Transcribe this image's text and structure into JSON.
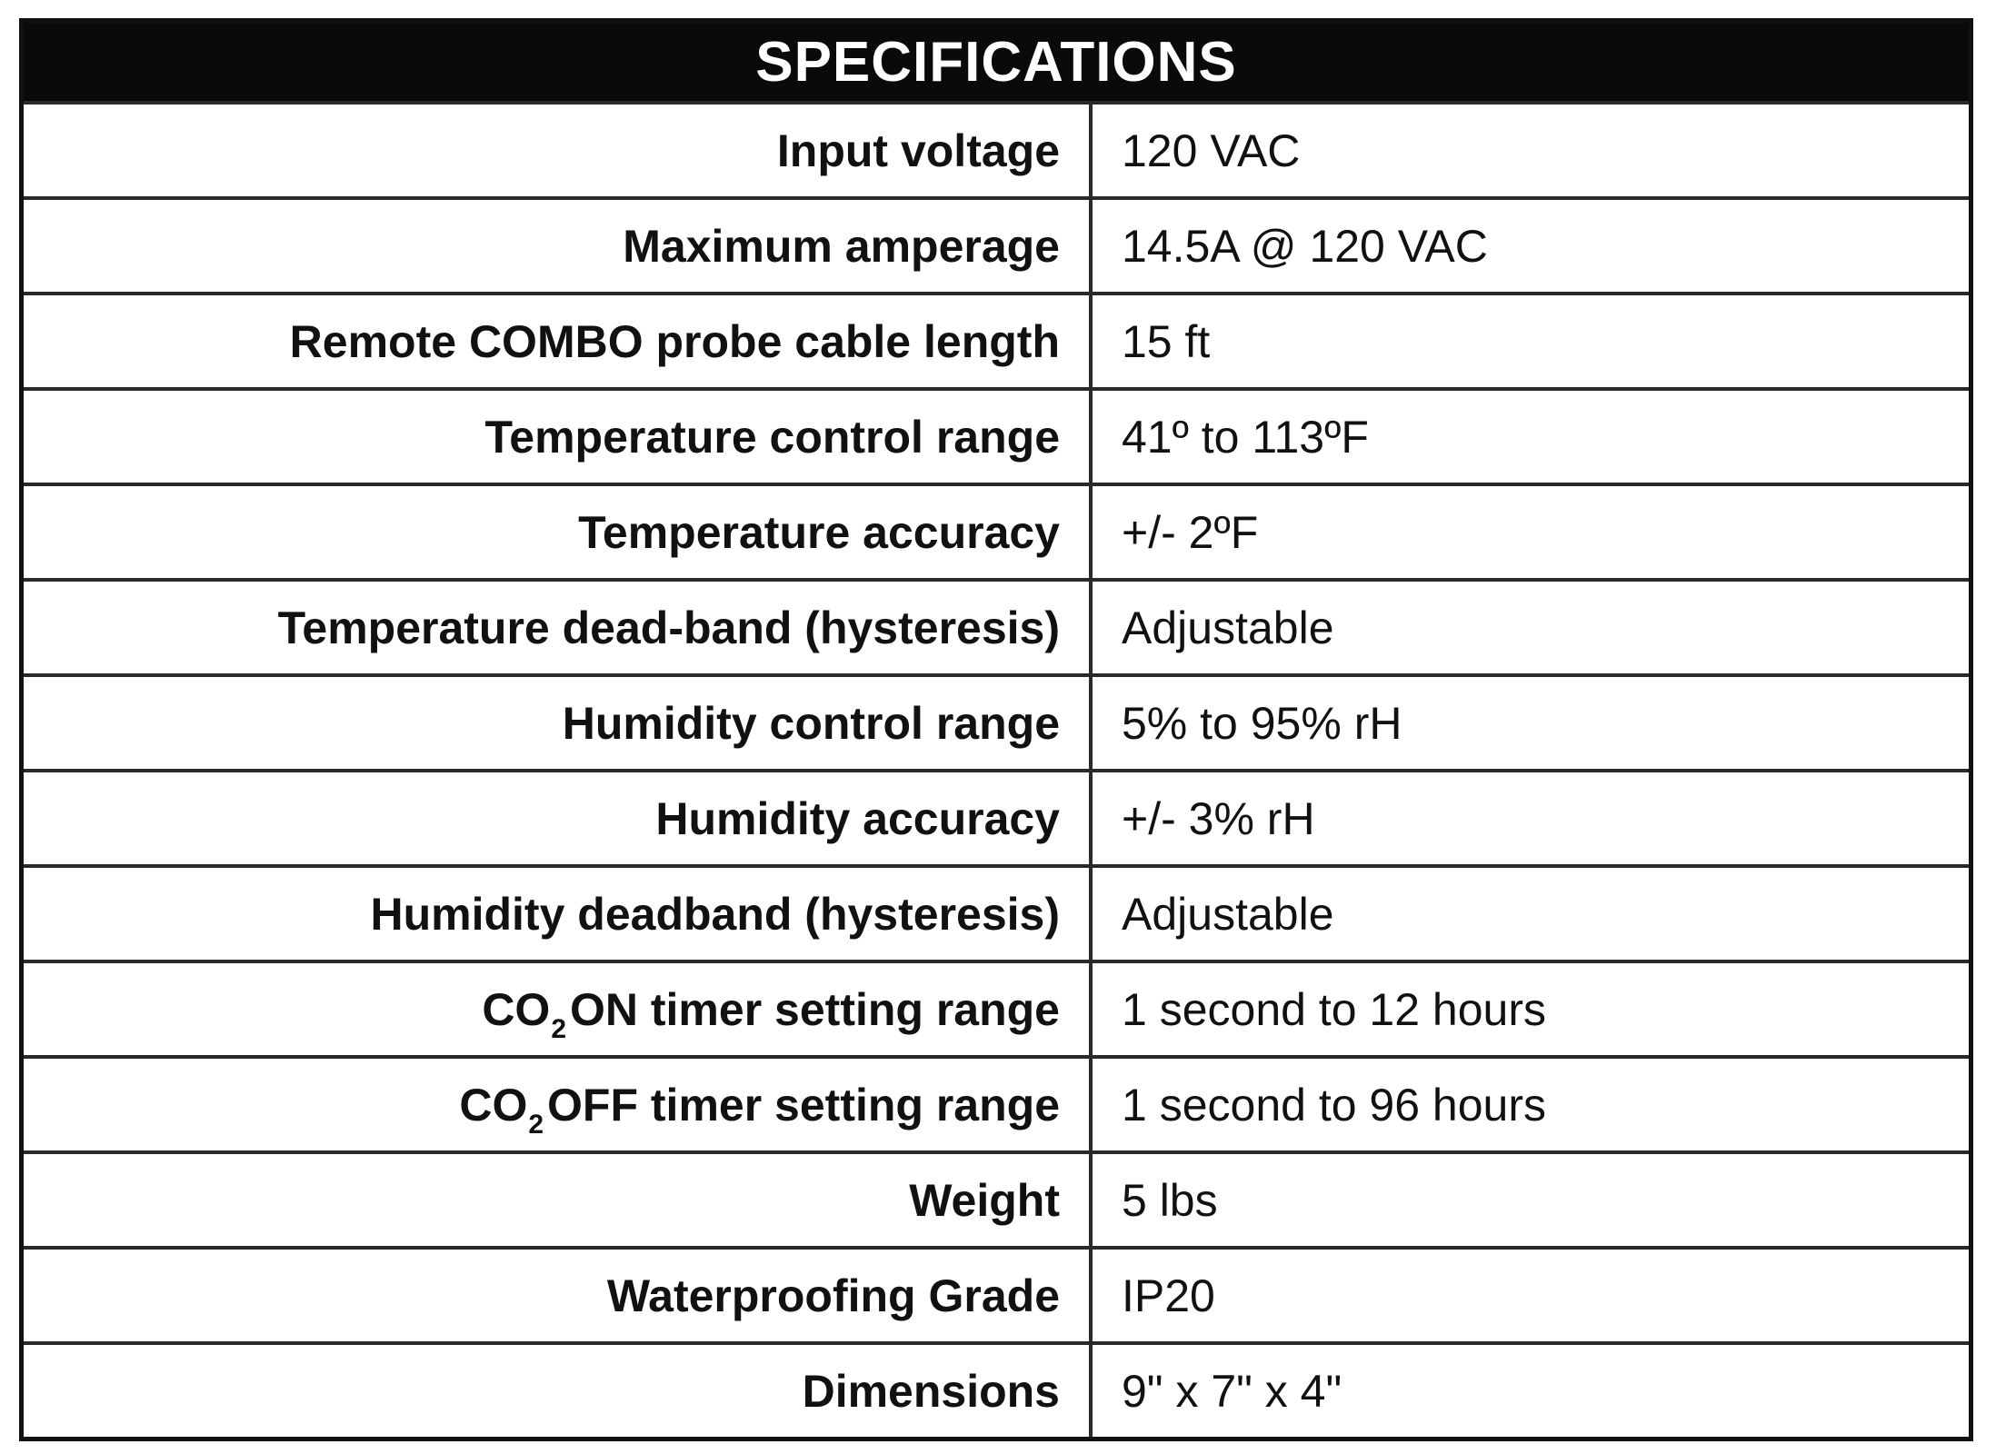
{
  "title": "SPECIFICATIONS",
  "rows": [
    {
      "label": "Input voltage",
      "value": "120 VAC"
    },
    {
      "label": "Maximum amperage",
      "value": "14.5A @ 120 VAC"
    },
    {
      "label": "Remote COMBO probe cable length",
      "value": "15 ft"
    },
    {
      "label": "Temperature control range",
      "value": "41º to 113ºF"
    },
    {
      "label": "Temperature accuracy",
      "value": "+/- 2ºF"
    },
    {
      "label": "Temperature dead-band (hysteresis)",
      "value": "Adjustable"
    },
    {
      "label": "Humidity control range",
      "value": "5% to 95% rH"
    },
    {
      "label": "Humidity accuracy",
      "value": "+/- 3% rH"
    },
    {
      "label": "Humidity deadband (hysteresis)",
      "value": "Adjustable"
    },
    {
      "label_prefix": "CO",
      "label_sub": "2",
      "label_suffix": "ON timer setting range",
      "value": "1 second to 12 hours"
    },
    {
      "label_prefix": "CO",
      "label_sub": "2",
      "label_suffix": "OFF timer setting range",
      "value": "1 second to 96 hours"
    },
    {
      "label": "Weight",
      "value": "5 lbs"
    },
    {
      "label": "Waterproofing Grade",
      "value": "IP20"
    },
    {
      "label": "Dimensions",
      "value": "9\" x 7\" x 4\""
    }
  ]
}
